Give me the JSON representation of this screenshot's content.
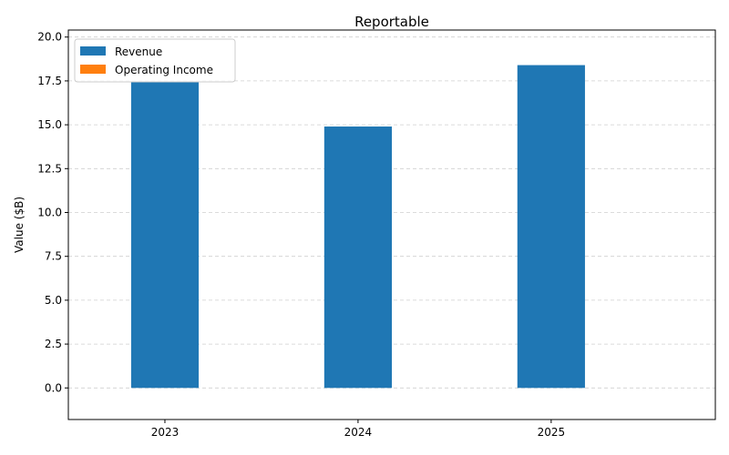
{
  "chart_data": {
    "type": "bar",
    "title": "Reportable",
    "xlabel": "",
    "ylabel": "Value ($B)",
    "categories": [
      "2023",
      "2024",
      "2025"
    ],
    "series": [
      {
        "name": "Revenue",
        "values": [
          17.45,
          14.9,
          18.4
        ],
        "color": "#1f77b4"
      },
      {
        "name": "Operating Income",
        "values": [
          0,
          0,
          0
        ],
        "color": "#ff7f0e"
      }
    ],
    "ylim": [
      -1.8,
      20.4
    ],
    "yticks": [
      0.0,
      2.5,
      5.0,
      7.5,
      10.0,
      12.5,
      15.0,
      17.5,
      20.0
    ],
    "ytick_labels": [
      "0.0",
      "2.5",
      "5.0",
      "7.5",
      "10.0",
      "12.5",
      "15.0",
      "17.5",
      "20.0"
    ],
    "grid": true,
    "legend_position": "top-left"
  }
}
